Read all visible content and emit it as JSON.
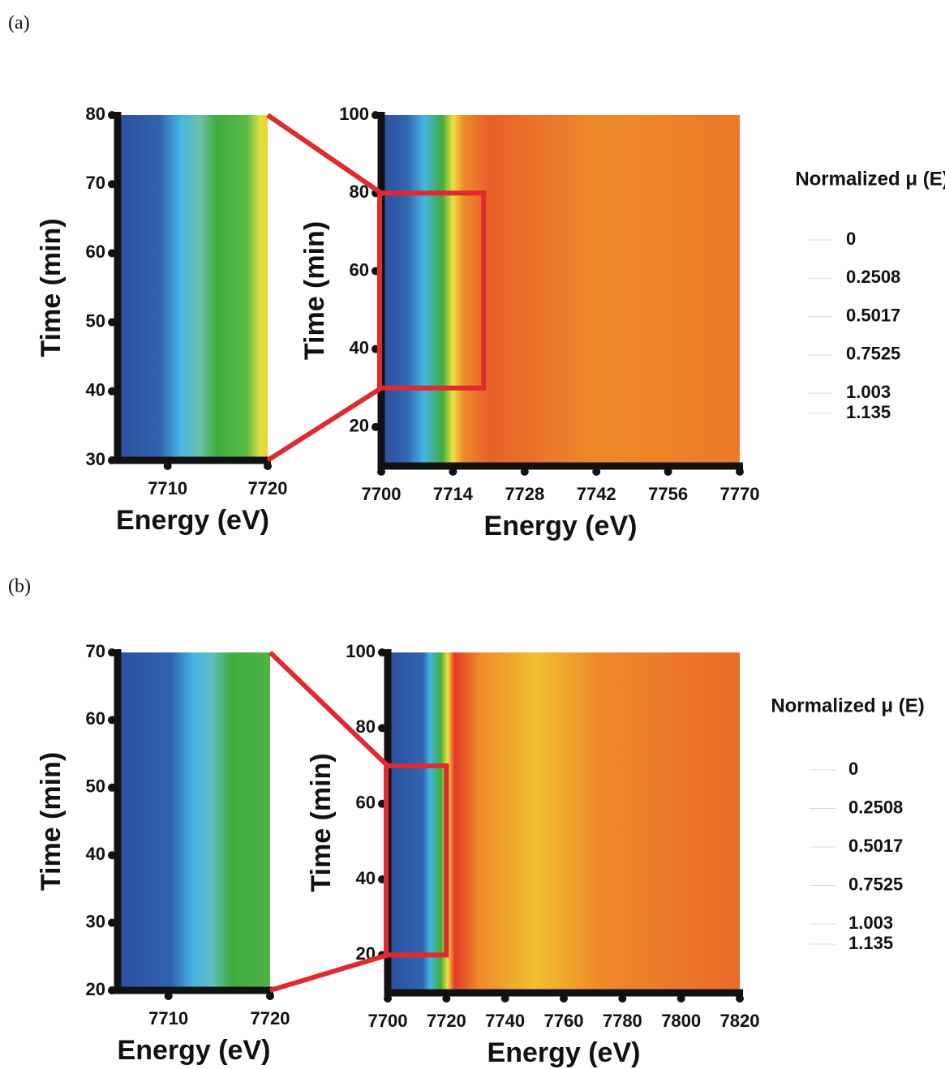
{
  "chart_data": [
    {
      "type": "heatmap",
      "panel_label": "(a)",
      "xlabel": "Energy (eV)",
      "ylabel": "Time (min)",
      "xlim": [
        7705,
        7720
      ],
      "xticks": [
        7710,
        7720
      ],
      "ylim": [
        30,
        80
      ],
      "yticks": [
        30,
        40,
        50,
        60,
        70,
        80
      ]
    },
    {
      "type": "heatmap",
      "xlabel": "Energy (eV)",
      "ylabel": "Time (min)",
      "xlim": [
        7700,
        7770
      ],
      "xticks": [
        7700,
        7714,
        7728,
        7742,
        7756,
        7770
      ],
      "ylim": [
        10,
        100
      ],
      "yticks": [
        20,
        40,
        60,
        80,
        100
      ],
      "colorbar_title": "Normalized μ (E)",
      "zlim": [
        0,
        1.135
      ],
      "zticks": [
        0,
        0.2508,
        0.5017,
        0.7525,
        1.003,
        1.135
      ]
    },
    {
      "type": "heatmap",
      "panel_label": "(b)",
      "xlabel": "Energy (eV)",
      "ylabel": "Time (min)",
      "xlim": [
        7705,
        7720
      ],
      "xticks": [
        7710,
        7720
      ],
      "ylim": [
        20,
        70
      ],
      "yticks": [
        20,
        30,
        40,
        50,
        60,
        70
      ]
    },
    {
      "type": "heatmap",
      "xlabel": "Energy (eV)",
      "ylabel": "Time (min)",
      "xlim": [
        7700,
        7820
      ],
      "xticks": [
        7700,
        7720,
        7740,
        7760,
        7780,
        7800,
        7820
      ],
      "ylim": [
        10,
        100
      ],
      "yticks": [
        20,
        40,
        60,
        80,
        100
      ],
      "colorbar_title": "Normalized μ (E)",
      "zlim": [
        0,
        1.135
      ],
      "zticks": [
        0,
        0.2508,
        0.5017,
        0.7525,
        1.003,
        1.135
      ]
    }
  ]
}
